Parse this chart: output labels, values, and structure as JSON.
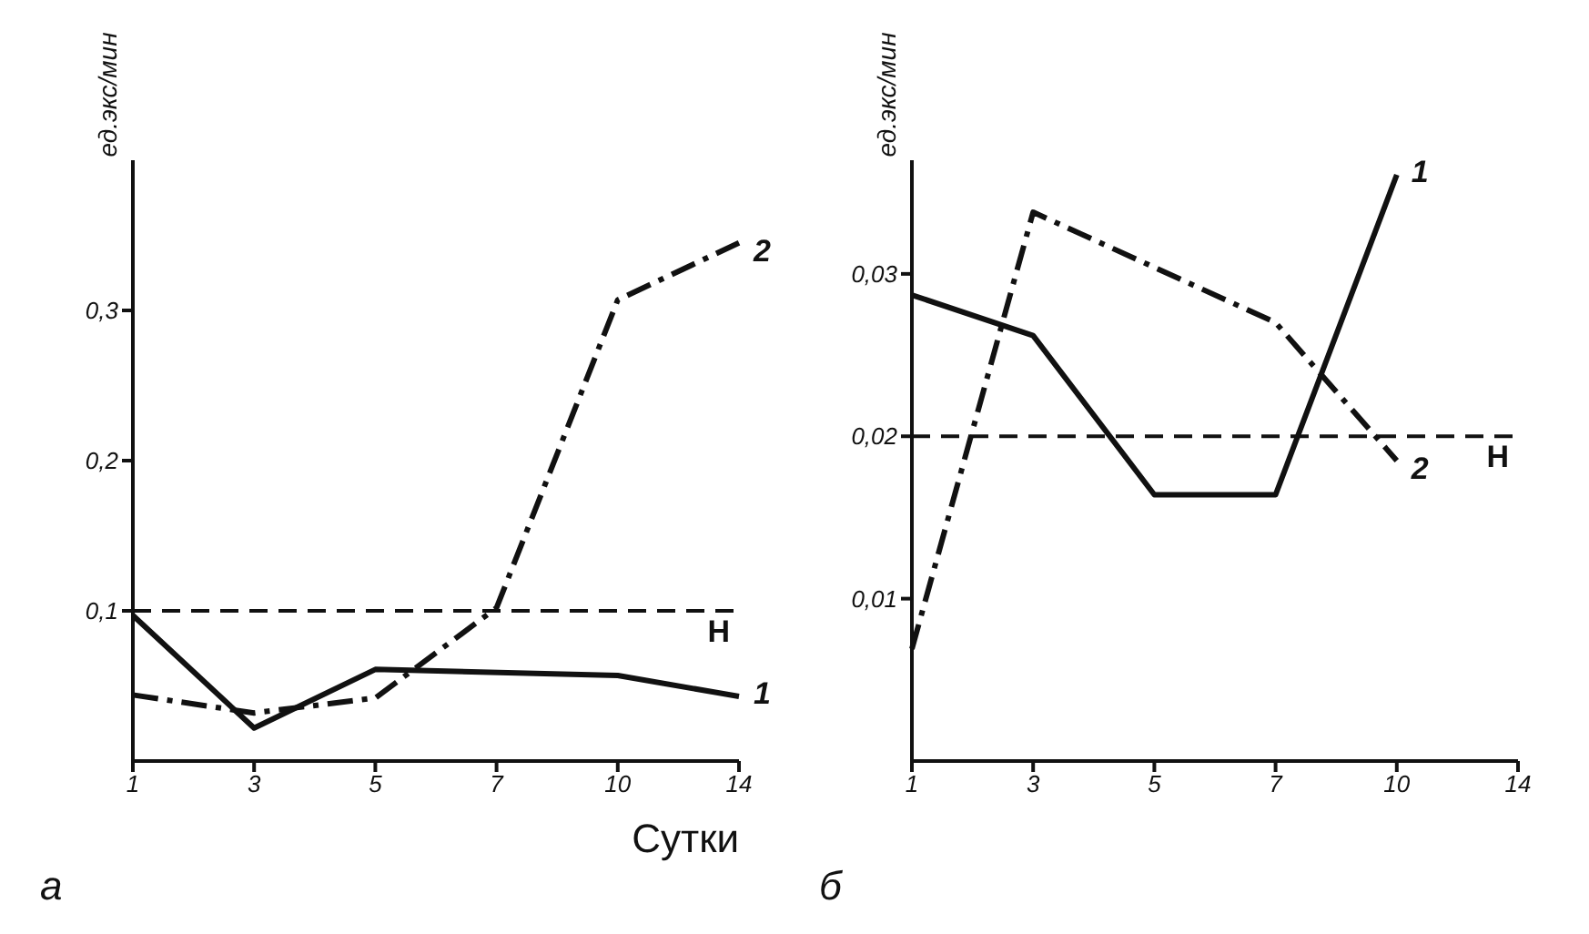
{
  "chart_data": [
    {
      "type": "line",
      "title": "а",
      "xlabel": "Сутки",
      "ylabel": "ед.экс/мин",
      "categories": [
        "1",
        "3",
        "5",
        "7",
        "10",
        "14"
      ],
      "ylim": [
        0,
        0.4
      ],
      "yticks": [
        {
          "value": 0.1,
          "label": "0,1"
        },
        {
          "value": 0.2,
          "label": "0,2"
        },
        {
          "value": 0.3,
          "label": "0,3"
        }
      ],
      "grid": false,
      "legend": false,
      "marker": "none",
      "series": [
        {
          "name": "1",
          "color": "#111111",
          "line_style": "solid",
          "values": [
            0.097,
            0.022,
            0.061,
            null,
            0.057,
            0.043
          ]
        },
        {
          "name": "2",
          "color": "#111111",
          "line_style": "dashed",
          "values": [
            0.044,
            0.032,
            0.042,
            0.102,
            0.307,
            0.345
          ]
        }
      ],
      "ref_lines": [
        {
          "axis": "y",
          "value": 0.1,
          "label": "Н",
          "color": "#111111",
          "line_style": "dashed"
        }
      ]
    },
    {
      "type": "line",
      "title": "б",
      "ylabel": "ед.экс/мин",
      "categories": [
        "1",
        "3",
        "5",
        "7",
        "10",
        "14"
      ],
      "ylim": [
        0,
        0.037
      ],
      "yticks": [
        {
          "value": 0.01,
          "label": "0,01"
        },
        {
          "value": 0.02,
          "label": "0,02"
        },
        {
          "value": 0.03,
          "label": "0,03"
        }
      ],
      "grid": false,
      "legend": false,
      "marker": "none",
      "series": [
        {
          "name": "1",
          "color": "#111111",
          "line_style": "solid",
          "values": [
            0.0287,
            0.0262,
            0.0164,
            0.0164,
            0.0361,
            null
          ]
        },
        {
          "name": "2",
          "color": "#111111",
          "line_style": "dashed",
          "values": [
            0.0069,
            0.0338,
            null,
            0.027,
            0.0185,
            null
          ]
        }
      ],
      "ref_lines": [
        {
          "axis": "y",
          "value": 0.02,
          "label": "Н",
          "color": "#111111",
          "line_style": "dashed"
        }
      ]
    }
  ]
}
